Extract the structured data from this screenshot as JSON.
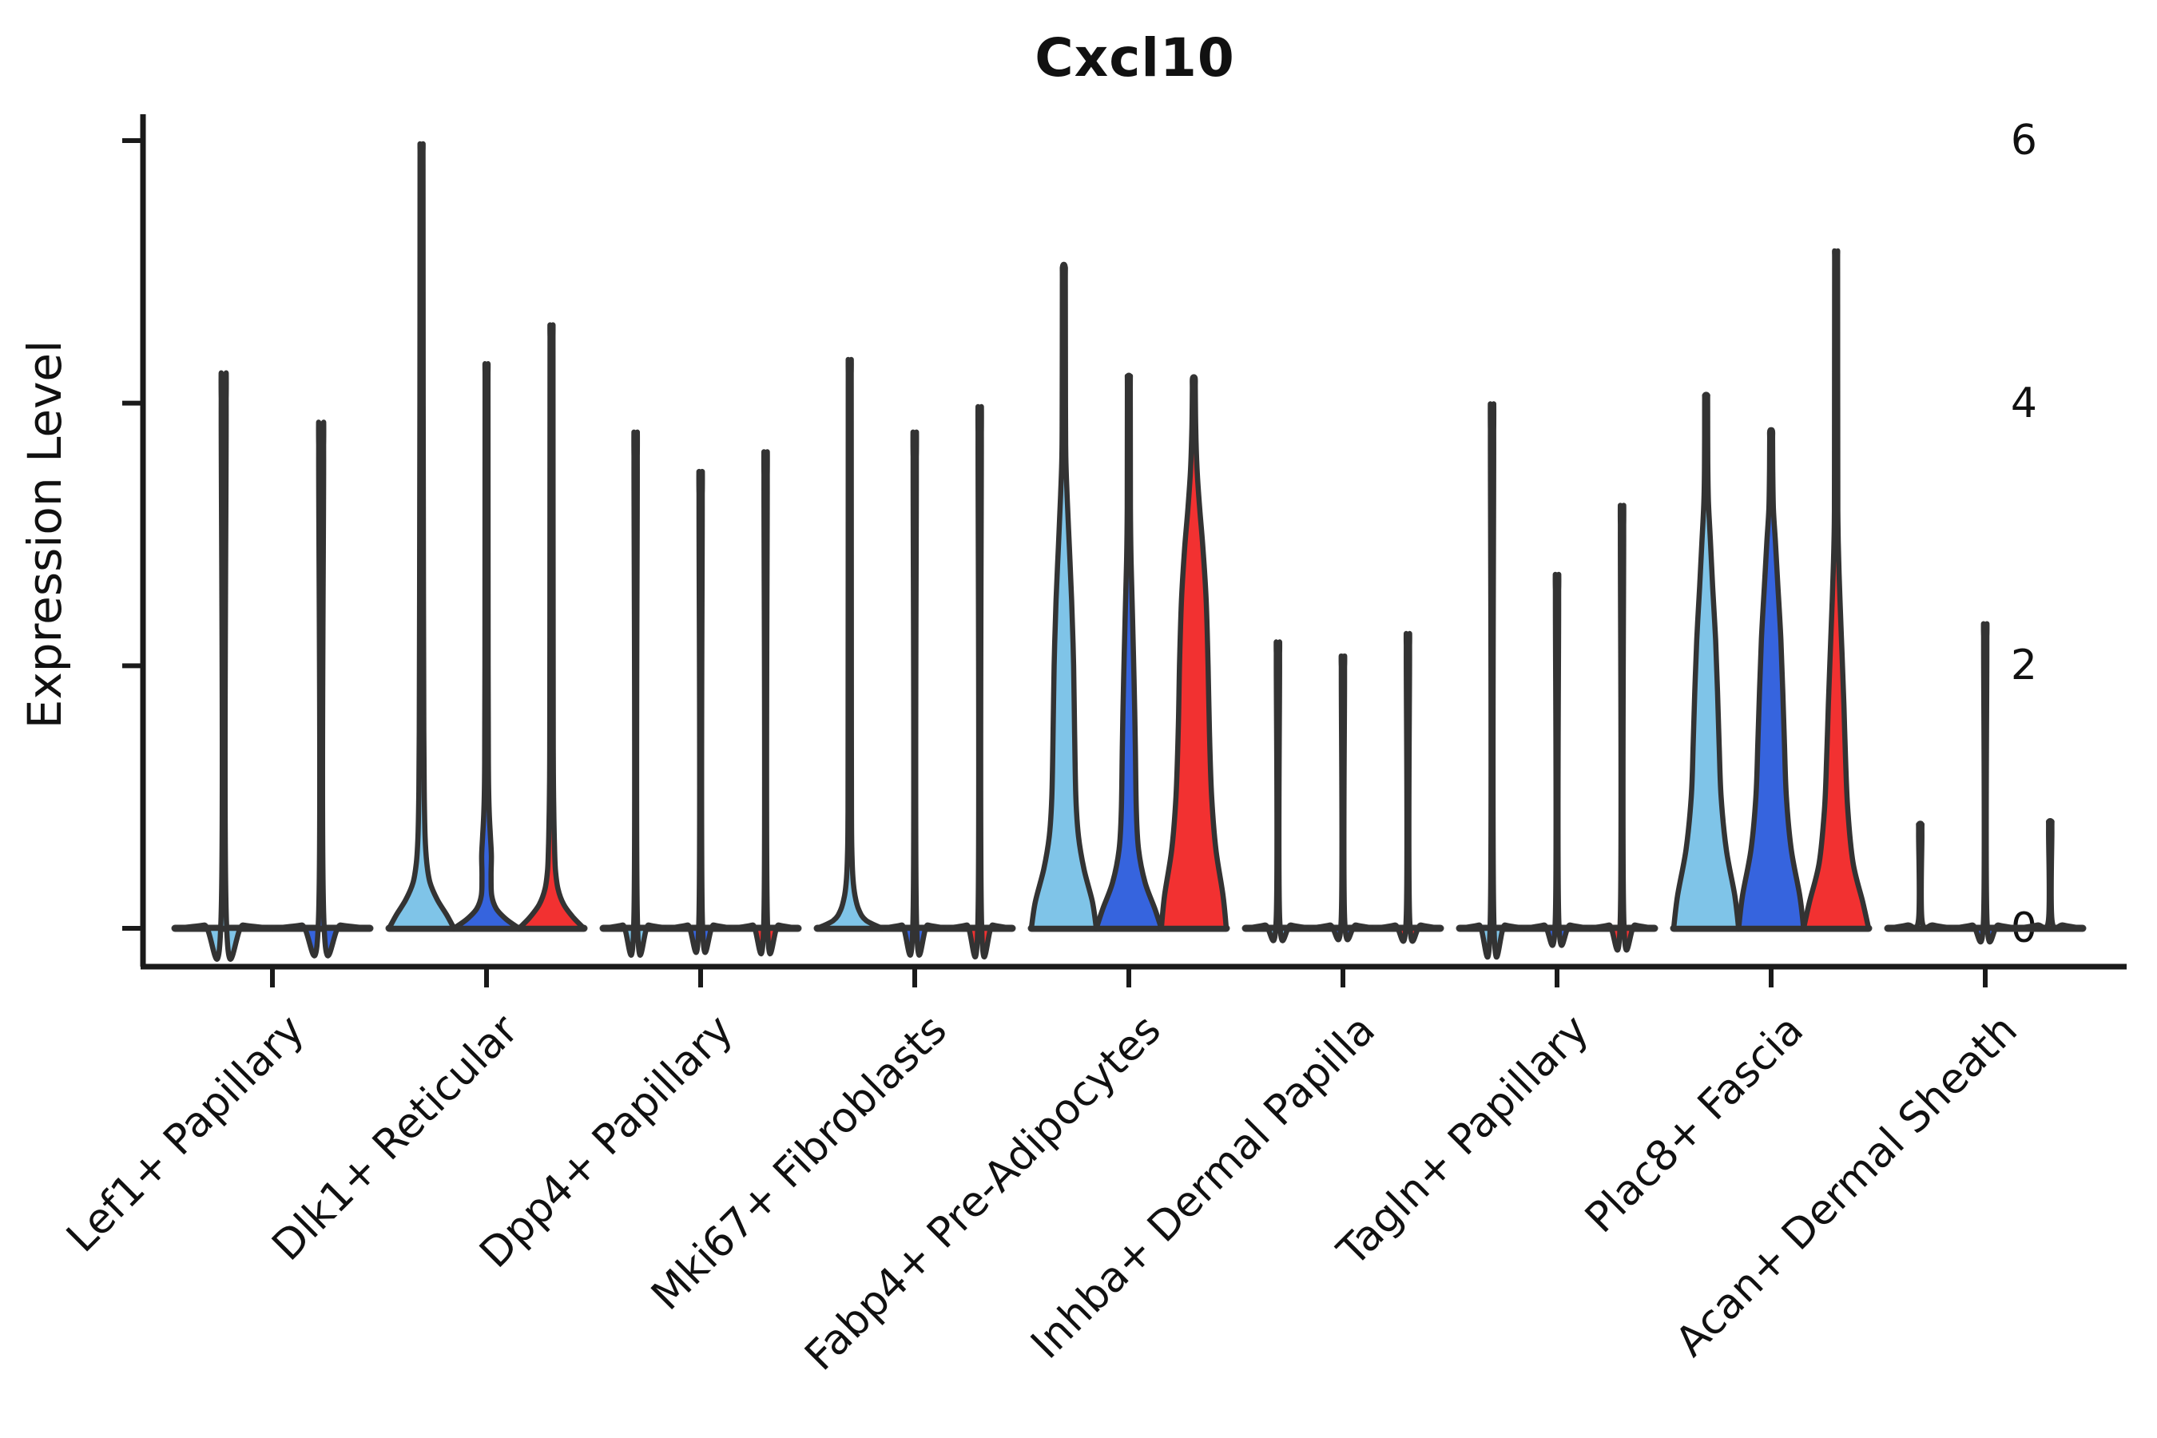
{
  "chart_data": {
    "type": "violin",
    "title": "Cxcl10",
    "xlabel": "",
    "ylabel": "Expression Level",
    "ylim": [
      0,
      6
    ],
    "yticks": [
      "0",
      "2",
      "4",
      "6"
    ],
    "grid": false,
    "legend": "none",
    "palette": {
      "lightblue": "#7FC4E8",
      "blue": "#3664DE",
      "red": "#F23131"
    },
    "stroke_color": "#333333",
    "axis_color": "#1a1a1a",
    "categories": [
      "Lef1+ Papillary",
      "Dlk1+ Reticular",
      "Dpp4+ Papillary",
      "Mki67+ Fibroblasts",
      "Fabp4+ Pre-Adipocytes",
      "Inhba+ Dermal Papilla",
      "Tagln+ Papillary",
      "Plac8+ Fascia",
      "Acan+ Dermal Sheath"
    ],
    "groups": [
      {
        "label": "Lef1+ Papillary",
        "violins": [
          {
            "color": "#7FC4E8",
            "max": 4.0,
            "shape": "spike"
          },
          {
            "color": "#3664DE",
            "max": 3.65,
            "shape": "spike"
          }
        ]
      },
      {
        "label": "Dlk1+ Reticular",
        "violins": [
          {
            "color": "#7FC4E8",
            "max": 5.92,
            "shape": "body",
            "body": [
              [
                0,
                1.0
              ],
              [
                0.1,
                0.78
              ],
              [
                0.22,
                0.48
              ],
              [
                0.35,
                0.26
              ],
              [
                0.5,
                0.16
              ],
              [
                0.7,
                0.11
              ],
              [
                1.0,
                0.085
              ],
              [
                1.5,
                0.07
              ],
              [
                2.5,
                0.06
              ],
              [
                4.0,
                0.05
              ],
              [
                5.8,
                0.045
              ],
              [
                5.92,
                0.04
              ]
            ]
          },
          {
            "color": "#3664DE",
            "max": 4.23,
            "shape": "body",
            "body": [
              [
                0,
                1.0
              ],
              [
                0.07,
                0.6
              ],
              [
                0.15,
                0.3
              ],
              [
                0.25,
                0.16
              ],
              [
                0.4,
                0.14
              ],
              [
                0.55,
                0.15
              ],
              [
                0.7,
                0.12
              ],
              [
                0.9,
                0.08
              ],
              [
                1.2,
                0.06
              ],
              [
                2.0,
                0.05
              ],
              [
                4.1,
                0.045
              ],
              [
                4.23,
                0.04
              ]
            ]
          },
          {
            "color": "#F23131",
            "max": 4.5,
            "shape": "body",
            "body": [
              [
                0,
                1.0
              ],
              [
                0.08,
                0.68
              ],
              [
                0.18,
                0.38
              ],
              [
                0.3,
                0.2
              ],
              [
                0.45,
                0.12
              ],
              [
                0.65,
                0.09
              ],
              [
                0.9,
                0.07
              ],
              [
                1.3,
                0.055
              ],
              [
                2.2,
                0.05
              ],
              [
                4.4,
                0.045
              ],
              [
                4.5,
                0.04
              ]
            ]
          }
        ]
      },
      {
        "label": "Dpp4+ Papillary",
        "violins": [
          {
            "color": "#7FC4E8",
            "max": 3.58,
            "shape": "spike"
          },
          {
            "color": "#3664DE",
            "max": 3.3,
            "shape": "spike"
          },
          {
            "color": "#F23131",
            "max": 3.44,
            "shape": "spike"
          }
        ]
      },
      {
        "label": "Mki67+ Fibroblasts",
        "violins": [
          {
            "color": "#7FC4E8",
            "max": 4.22,
            "shape": "body",
            "body": [
              [
                0,
                1.0
              ],
              [
                0.06,
                0.5
              ],
              [
                0.14,
                0.28
              ],
              [
                0.25,
                0.16
              ],
              [
                0.38,
                0.1
              ],
              [
                0.55,
                0.07
              ],
              [
                0.8,
                0.055
              ],
              [
                1.5,
                0.05
              ],
              [
                4.1,
                0.045
              ],
              [
                4.22,
                0.04
              ]
            ]
          },
          {
            "color": "#3664DE",
            "max": 3.58,
            "shape": "spike"
          },
          {
            "color": "#F23131",
            "max": 3.76,
            "shape": "spike"
          }
        ]
      },
      {
        "label": "Fabp4+ Pre-Adipocytes",
        "violins": [
          {
            "color": "#7FC4E8",
            "max": 5.04,
            "shape": "body",
            "body": [
              [
                0,
                1.0
              ],
              [
                0.2,
                0.88
              ],
              [
                0.45,
                0.62
              ],
              [
                0.7,
                0.45
              ],
              [
                1.0,
                0.37
              ],
              [
                1.5,
                0.33
              ],
              [
                2.0,
                0.3
              ],
              [
                2.5,
                0.24
              ],
              [
                2.9,
                0.17
              ],
              [
                3.3,
                0.1
              ],
              [
                3.6,
                0.06
              ],
              [
                4.0,
                0.05
              ],
              [
                4.9,
                0.045
              ],
              [
                5.04,
                0.04
              ]
            ]
          },
          {
            "color": "#3664DE",
            "max": 4.2,
            "shape": "body",
            "body": [
              [
                0,
                1.0
              ],
              [
                0.15,
                0.8
              ],
              [
                0.35,
                0.5
              ],
              [
                0.6,
                0.3
              ],
              [
                0.9,
                0.23
              ],
              [
                1.4,
                0.2
              ],
              [
                1.9,
                0.16
              ],
              [
                2.4,
                0.11
              ],
              [
                2.8,
                0.07
              ],
              [
                3.2,
                0.05
              ],
              [
                4.1,
                0.045
              ],
              [
                4.2,
                0.04
              ]
            ]
          },
          {
            "color": "#F23131",
            "max": 4.19,
            "shape": "body",
            "body": [
              [
                0,
                1.0
              ],
              [
                0.25,
                0.9
              ],
              [
                0.6,
                0.68
              ],
              [
                1.0,
                0.55
              ],
              [
                1.5,
                0.48
              ],
              [
                2.0,
                0.44
              ],
              [
                2.5,
                0.38
              ],
              [
                2.9,
                0.28
              ],
              [
                3.2,
                0.18
              ],
              [
                3.5,
                0.1
              ],
              [
                3.8,
                0.06
              ],
              [
                4.1,
                0.045
              ],
              [
                4.19,
                0.04
              ]
            ]
          }
        ]
      },
      {
        "label": "Inhba+ Dermal Papilla",
        "violins": [
          {
            "color": "#7FC4E8",
            "max": 2.09,
            "shape": "spike"
          },
          {
            "color": "#3664DE",
            "max": 1.99,
            "shape": "spike"
          },
          {
            "color": "#F23131",
            "max": 2.15,
            "shape": "spike"
          }
        ]
      },
      {
        "label": "Tagln+ Papillary",
        "violins": [
          {
            "color": "#7FC4E8",
            "max": 3.78,
            "shape": "spike"
          },
          {
            "color": "#3664DE",
            "max": 2.57,
            "shape": "spike"
          },
          {
            "color": "#F23131",
            "max": 3.06,
            "shape": "spike"
          }
        ]
      },
      {
        "label": "Plac8+ Fascia",
        "violins": [
          {
            "color": "#7FC4E8",
            "max": 4.06,
            "shape": "body",
            "body": [
              [
                0,
                1.0
              ],
              [
                0.25,
                0.88
              ],
              [
                0.6,
                0.62
              ],
              [
                1.0,
                0.46
              ],
              [
                1.4,
                0.4
              ],
              [
                1.8,
                0.35
              ],
              [
                2.2,
                0.29
              ],
              [
                2.6,
                0.2
              ],
              [
                2.95,
                0.13
              ],
              [
                3.25,
                0.07
              ],
              [
                3.55,
                0.05
              ],
              [
                4.0,
                0.045
              ],
              [
                4.06,
                0.04
              ]
            ]
          },
          {
            "color": "#3664DE",
            "max": 3.79,
            "shape": "body",
            "body": [
              [
                0,
                1.0
              ],
              [
                0.25,
                0.88
              ],
              [
                0.6,
                0.62
              ],
              [
                1.0,
                0.47
              ],
              [
                1.4,
                0.41
              ],
              [
                1.8,
                0.36
              ],
              [
                2.2,
                0.3
              ],
              [
                2.6,
                0.21
              ],
              [
                2.95,
                0.13
              ],
              [
                3.2,
                0.07
              ],
              [
                3.5,
                0.05
              ],
              [
                3.73,
                0.045
              ],
              [
                3.79,
                0.04
              ]
            ]
          },
          {
            "color": "#F23131",
            "max": 5.13,
            "shape": "body",
            "body": [
              [
                0,
                1.0
              ],
              [
                0.2,
                0.82
              ],
              [
                0.5,
                0.52
              ],
              [
                0.9,
                0.36
              ],
              [
                1.3,
                0.29
              ],
              [
                1.7,
                0.24
              ],
              [
                2.1,
                0.18
              ],
              [
                2.5,
                0.12
              ],
              [
                2.8,
                0.08
              ],
              [
                3.1,
                0.055
              ],
              [
                3.5,
                0.05
              ],
              [
                5.0,
                0.045
              ],
              [
                5.13,
                0.04
              ]
            ]
          }
        ]
      },
      {
        "label": "Acan+ Dermal Sheath",
        "violins": [
          {
            "color": "#7FC4E8",
            "max": 0.79,
            "shape": "spike"
          },
          {
            "color": "#3664DE",
            "max": 2.22,
            "shape": "spike"
          },
          {
            "color": "#F23131",
            "max": 0.81,
            "shape": "spike"
          }
        ]
      }
    ]
  }
}
